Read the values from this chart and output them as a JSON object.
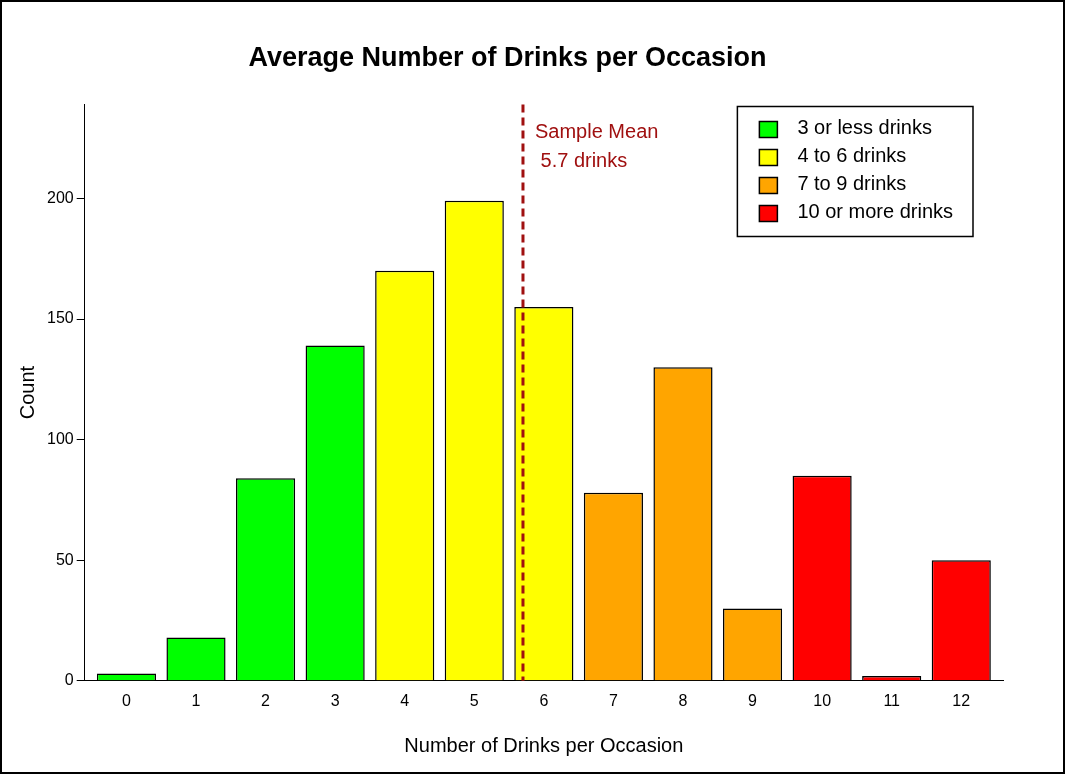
{
  "chart_data": {
    "type": "bar",
    "title": "Average Number of Drinks per Occasion",
    "xlabel": "Number of Drinks per Occasion",
    "ylabel": "Count",
    "x": [
      0,
      1,
      2,
      3,
      4,
      5,
      6,
      7,
      8,
      9,
      10,
      11,
      12
    ],
    "series": [
      {
        "name": "3 or less drinks",
        "color": "#00ff00",
        "values": [
          3,
          18,
          84,
          139,
          null,
          null,
          null,
          null,
          null,
          null,
          null,
          null,
          null
        ]
      },
      {
        "name": "4 to 6 drinks",
        "color": "#ffff00",
        "values": [
          null,
          null,
          null,
          null,
          170,
          199,
          155,
          null,
          null,
          null,
          null,
          null,
          null
        ]
      },
      {
        "name": "7 to 9 drinks",
        "color": "#ffa500",
        "values": [
          null,
          null,
          null,
          null,
          null,
          null,
          null,
          78,
          130,
          30,
          null,
          null,
          null
        ]
      },
      {
        "name": "10 or more drinks",
        "color": "#ff0000",
        "values": [
          null,
          null,
          null,
          null,
          null,
          null,
          null,
          null,
          null,
          null,
          85,
          2,
          50
        ]
      }
    ],
    "xlim": [
      -0.6,
      12.6
    ],
    "xticks": [
      0,
      1,
      2,
      3,
      4,
      5,
      6,
      7,
      8,
      9,
      10,
      11,
      12
    ],
    "ylim": [
      0,
      239
    ],
    "yticks": [
      0,
      50,
      100,
      150,
      200
    ],
    "ref_lines": [
      {
        "axis": "x",
        "value": 5.7,
        "label": "Sample Mean\n 5.7 drinks",
        "color": "#a01010",
        "line_style": "dashed"
      }
    ],
    "grid": false,
    "legend": "top right"
  }
}
